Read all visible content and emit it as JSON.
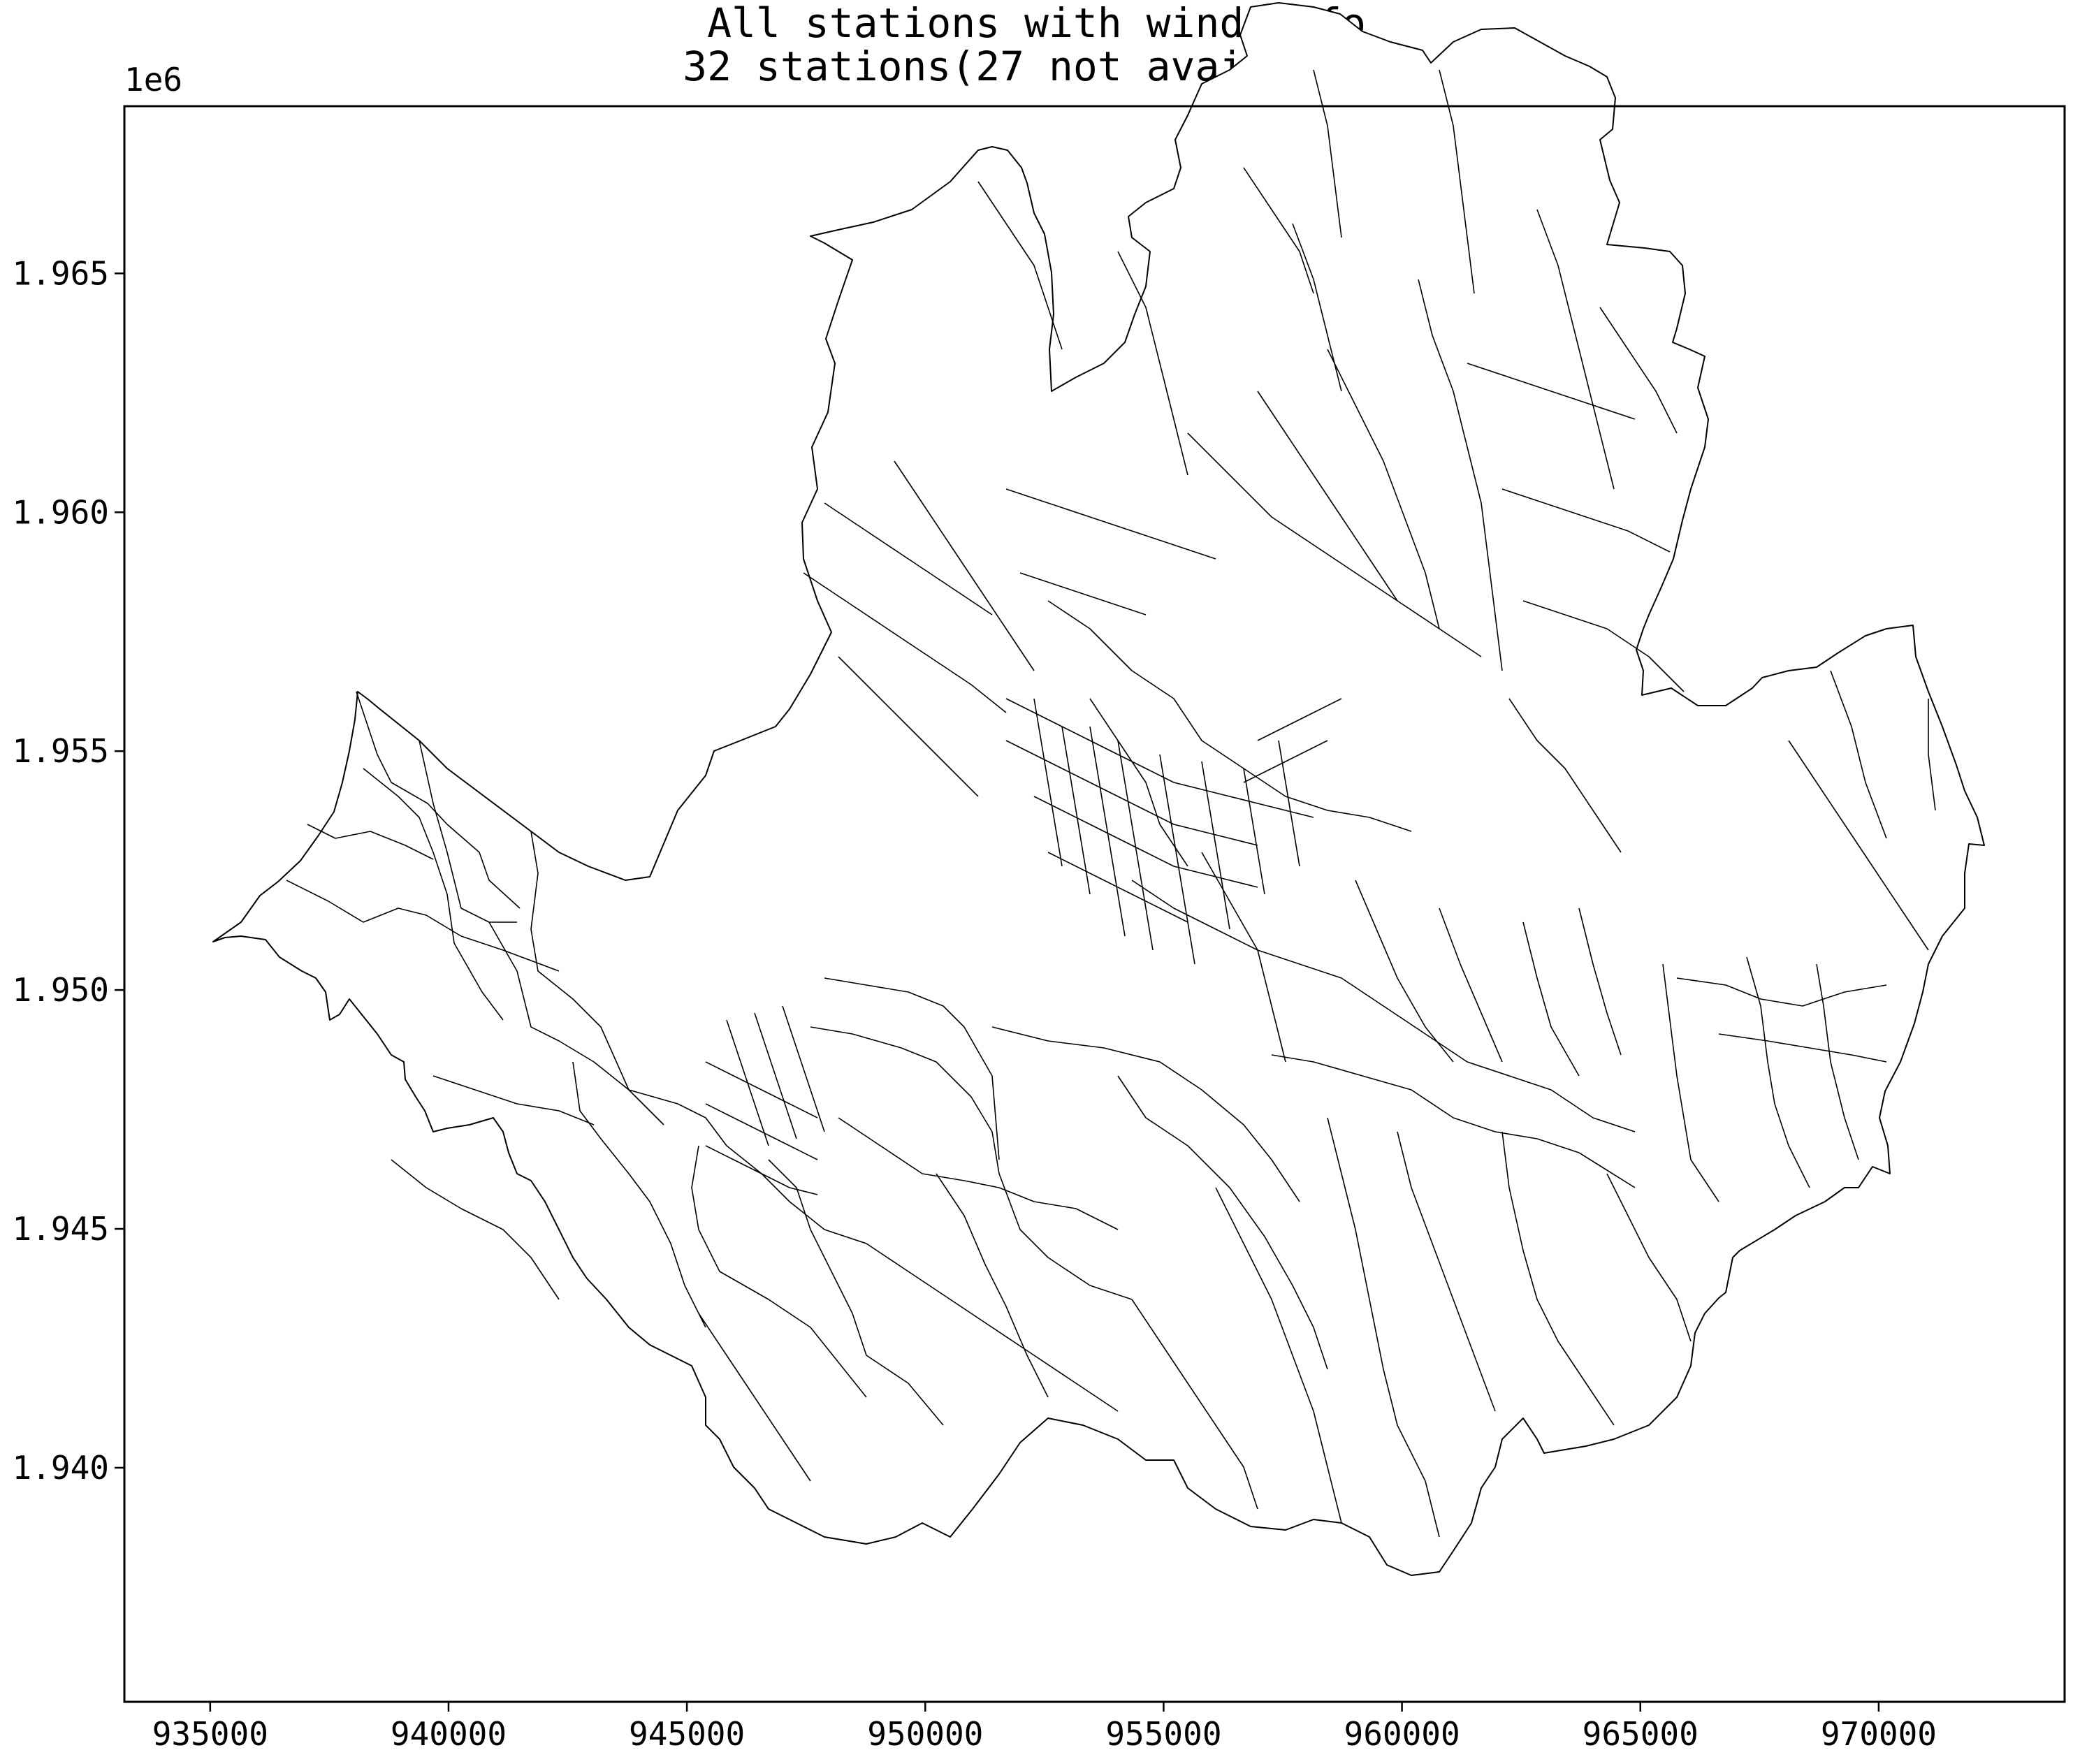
{
  "title": {
    "line1": "All stations with wind info",
    "line2": "32 stations(27 not available)"
  },
  "chart_data": {
    "type": "map",
    "title": "All stations with wind info",
    "subtitle": "32 stations(27 not available)",
    "x_ticks": [
      935000,
      940000,
      945000,
      950000,
      955000,
      960000,
      965000,
      970000
    ],
    "x_tick_labels": [
      "935000",
      "940000",
      "945000",
      "950000",
      "955000",
      "960000",
      "965000",
      "970000"
    ],
    "y_ticks": [
      1.94,
      1.945,
      1.95,
      1.955,
      1.96,
      1.965
    ],
    "y_tick_labels": [
      "1.940",
      "1.945",
      "1.950",
      "1.955",
      "1.960",
      "1.965"
    ],
    "y_offset_text": "1e6",
    "xlim": [
      933200,
      973900
    ],
    "ylim": [
      1935100,
      1968500
    ],
    "grid": false,
    "stations_total": 32,
    "stations_not_available": 27,
    "colors": {
      "boundary": "#000000",
      "fill": "#ffffff",
      "background": "#ffffff"
    }
  }
}
